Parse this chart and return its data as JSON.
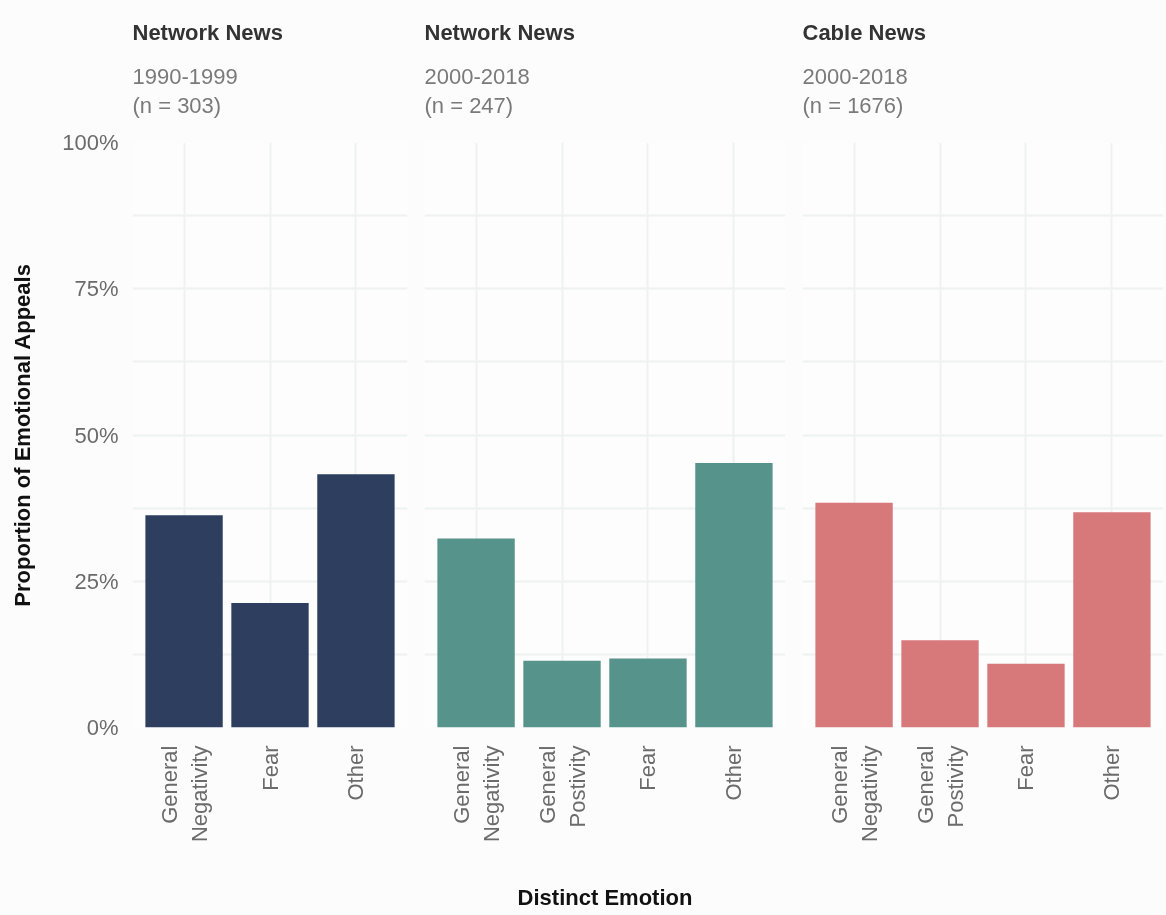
{
  "chart_data": [
    {
      "type": "bar",
      "title": "Network News",
      "subtitle": "1990-1999\n(n = 303)",
      "ylabel": "Proportion of Emotional Appeals",
      "categories": [
        "General Negativity",
        "Fear",
        "Other"
      ],
      "values": [
        36.3,
        21.3,
        43.3
      ],
      "color": "#2d3e5f",
      "ylim": [
        0,
        100
      ],
      "yticks": [
        {
          "value": 0,
          "label": "0%"
        },
        {
          "value": 25,
          "label": "25%"
        },
        {
          "value": 50,
          "label": "50%"
        },
        {
          "value": 75,
          "label": "75%"
        },
        {
          "value": 100,
          "label": "100%"
        }
      ],
      "grid": true
    },
    {
      "type": "bar",
      "title": "Network News",
      "subtitle": "2000-2018\n(n = 247)",
      "xlabel": "Distinct Emotion",
      "categories": [
        "General Negativity",
        "General Postivity",
        "Fear",
        "Other"
      ],
      "values": [
        32.3,
        11.4,
        11.8,
        45.2
      ],
      "color": "#56938a",
      "ylim": [
        0,
        100
      ],
      "yticks": [
        0,
        25,
        50,
        75,
        100
      ],
      "grid": true,
      "tick_labels": "x"
    },
    {
      "type": "bar",
      "title": "Cable News",
      "subtitle": "2000-2018\n(n = 1676)",
      "categories": [
        "General Negativity",
        "General Postivity",
        "Fear",
        "Other"
      ],
      "values": [
        38.4,
        14.9,
        10.9,
        36.8
      ],
      "color": "#d7797a",
      "ylim": [
        0,
        100
      ],
      "yticks": [
        0,
        25,
        50,
        75,
        100
      ],
      "grid": true,
      "tick_labels": "x"
    }
  ]
}
